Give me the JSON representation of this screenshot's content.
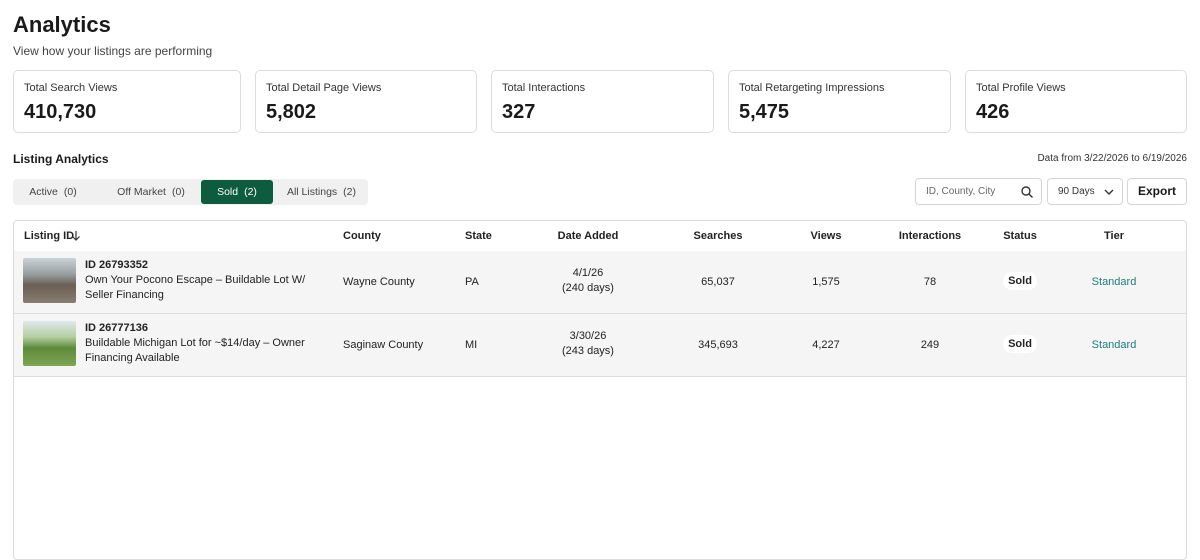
{
  "header": {
    "title": "Analytics",
    "subtitle": "View how your listings are performing"
  },
  "stats": [
    {
      "label": "Total Search Views",
      "value": "410,730"
    },
    {
      "label": "Total Detail Page Views",
      "value": "5,802"
    },
    {
      "label": "Total Interactions",
      "value": "327"
    },
    {
      "label": "Total Retargeting Impressions",
      "value": "5,475"
    },
    {
      "label": "Total Profile Views",
      "value": "426"
    }
  ],
  "section": {
    "title": "Listing Analytics",
    "date_range": "Data from 3/22/2026 to 6/19/2026"
  },
  "tabs": [
    {
      "label": "Active",
      "count": "(0)",
      "selected": false
    },
    {
      "label": "Off Market",
      "count": "(0)",
      "selected": false
    },
    {
      "label": "Sold",
      "count": "(2)",
      "selected": true
    },
    {
      "label": "All Listings",
      "count": "(2)",
      "selected": false
    }
  ],
  "controls": {
    "search_placeholder": "ID, County, City",
    "period": "90 Days",
    "export": "Export"
  },
  "table": {
    "columns": [
      "Listing ID",
      "County",
      "State",
      "Date Added",
      "Searches",
      "Views",
      "Interactions",
      "Status",
      "Tier"
    ],
    "rows": [
      {
        "id": "ID 26793352",
        "title": "Own Your Pocono Escape – Buildable Lot W/ Seller Financing",
        "county": "Wayne County",
        "state": "PA",
        "date": "4/1/26",
        "days": "(240 days)",
        "searches": "65,037",
        "views": "1,575",
        "interactions": "78",
        "status": "Sold",
        "tier": "Standard"
      },
      {
        "id": "ID 26777136",
        "title": "Buildable Michigan Lot for ~$14/day – Owner Financing Available",
        "county": "Saginaw County",
        "state": "MI",
        "date": "3/30/26",
        "days": "(243 days)",
        "searches": "345,693",
        "views": "4,227",
        "interactions": "249",
        "status": "Sold",
        "tier": "Standard"
      }
    ]
  }
}
